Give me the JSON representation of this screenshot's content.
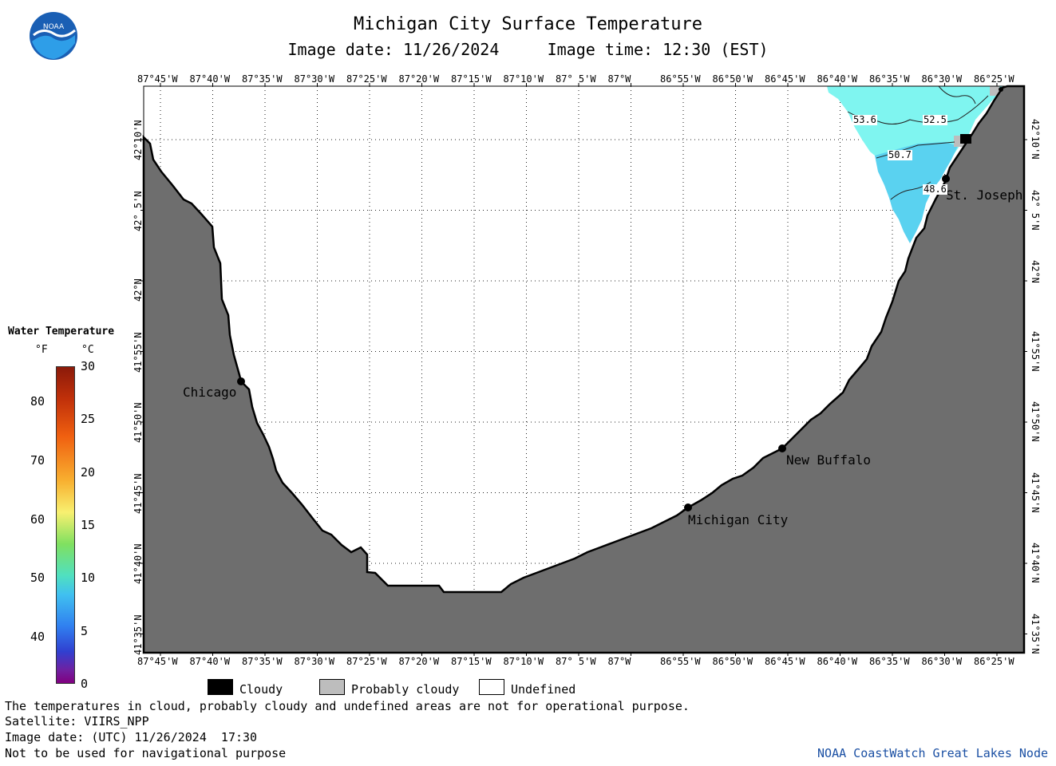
{
  "title": "Michigan City Surface Temperature",
  "image_date_label": "Image date: 11/26/2024",
  "image_time_label": "Image time: 12:30 (EST)",
  "logo_text": "NOAA",
  "longitude_ticks": [
    "87°45'W",
    "87°40'W",
    "87°35'W",
    "87°30'W",
    "87°25'W",
    "87°20'W",
    "87°15'W",
    "87°10'W",
    "87° 5'W",
    "87°W",
    "86°55'W",
    "86°50'W",
    "86°45'W",
    "86°40'W",
    "86°35'W",
    "86°30'W",
    "86°25'W"
  ],
  "latitude_ticks": [
    "42°10'N",
    "42° 5'N",
    "42°N",
    "41°55'N",
    "41°50'N",
    "41°45'N",
    "41°40'N",
    "41°35'N"
  ],
  "cities": [
    {
      "name": "Chicago"
    },
    {
      "name": "Michigan City"
    },
    {
      "name": "New Buffalo"
    },
    {
      "name": "St. Joseph"
    }
  ],
  "contour_labels": [
    "53.6",
    "52.5",
    "50.7",
    "48.6"
  ],
  "legend": {
    "title": "Water Temperature",
    "unit_f": "°F",
    "unit_c": "°C",
    "f_values": [
      "80",
      "70",
      "60",
      "50",
      "40"
    ],
    "c_values": [
      "30",
      "25",
      "20",
      "15",
      "10",
      "5",
      "0"
    ]
  },
  "key": {
    "cloudy": "Cloudy",
    "probably_cloudy": "Probably cloudy",
    "undefined": "Undefined"
  },
  "footer": {
    "line1": "The temperatures in cloud, probably cloudy and undefined areas are not for operational purpose.",
    "line2": "Satellite: VIIRS_NPP",
    "line3": "Image date: (UTC) 11/26/2024  17:30",
    "line4": "Not to be used for navigational purpose",
    "credit": "NOAA CoastWatch Great Lakes Node"
  },
  "colors": {
    "land": "#6e6e6e",
    "water_undefined": "#ffffff",
    "sst_warm": "#7ff5f0",
    "sst_cool": "#5ad2f0",
    "credit": "#1a4fa3"
  }
}
